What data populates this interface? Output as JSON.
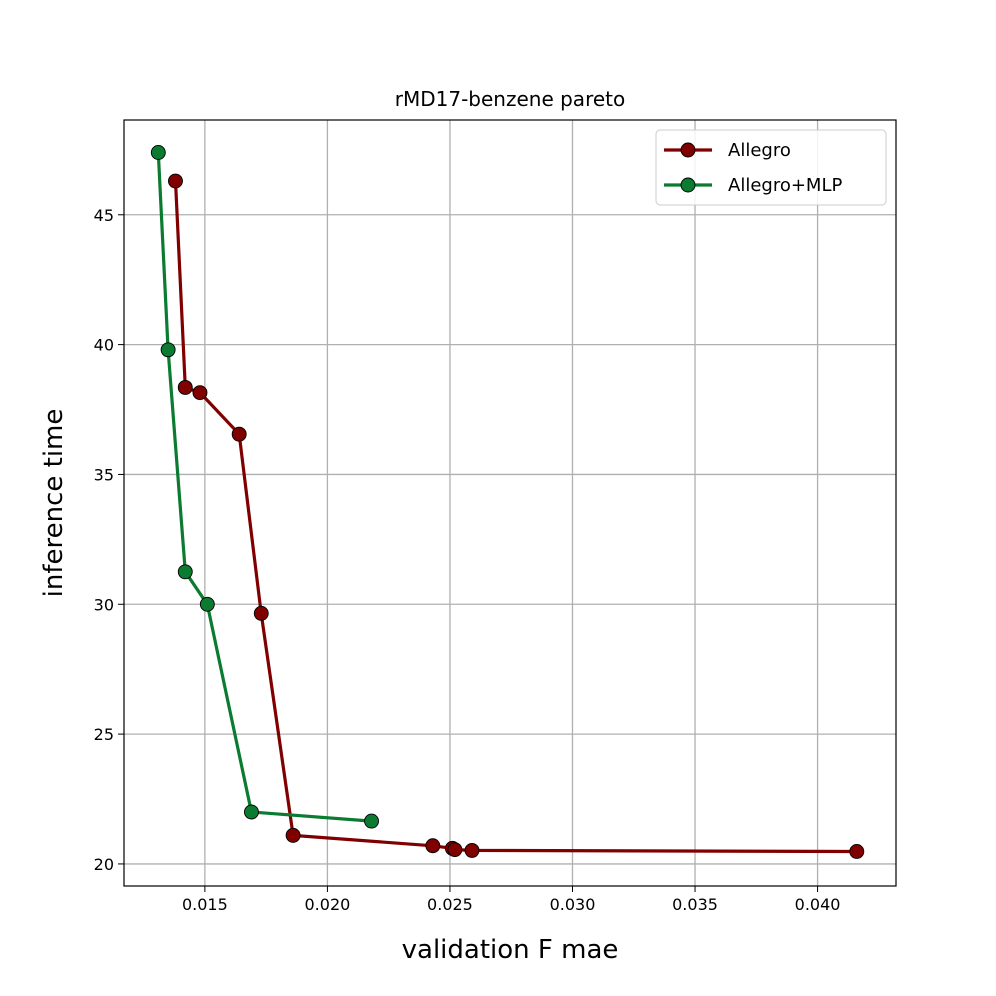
{
  "chart_data": {
    "type": "line",
    "title": "rMD17-benzene pareto",
    "xlabel": "validation F mae",
    "ylabel": "inference time",
    "xlim": [
      0.0117,
      0.0432
    ],
    "ylim": [
      19.15,
      48.65
    ],
    "xticks": [
      0.015,
      0.02,
      0.025,
      0.03,
      0.035,
      0.04
    ],
    "xtick_labels": [
      "0.015",
      "0.020",
      "0.025",
      "0.030",
      "0.035",
      "0.040"
    ],
    "yticks": [
      20,
      25,
      30,
      35,
      40,
      45
    ],
    "ytick_labels": [
      "20",
      "25",
      "30",
      "35",
      "40",
      "45"
    ],
    "grid": true,
    "legend_position": "top-right",
    "series": [
      {
        "name": "Allegro",
        "color": "#800000",
        "x": [
          0.0138,
          0.0142,
          0.0148,
          0.0164,
          0.0173,
          0.0186,
          0.0243,
          0.0251,
          0.0252,
          0.0259,
          0.0416
        ],
        "y": [
          46.3,
          38.35,
          38.15,
          36.55,
          29.65,
          21.1,
          20.7,
          20.6,
          20.55,
          20.52,
          20.48
        ]
      },
      {
        "name": "Allegro+MLP",
        "color": "#0b7b32",
        "x": [
          0.0131,
          0.0135,
          0.0142,
          0.0151,
          0.0169,
          0.0218
        ],
        "y": [
          47.4,
          39.8,
          31.25,
          30.0,
          22.0,
          21.65
        ]
      }
    ]
  }
}
